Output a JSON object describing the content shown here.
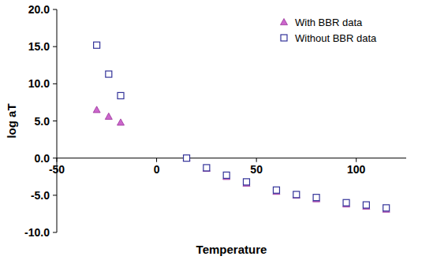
{
  "chart_data": {
    "type": "scatter",
    "x_label": "Temperature",
    "y_label": "log aT",
    "x": [
      -30,
      -24,
      -18,
      15,
      25,
      35,
      45,
      60,
      70,
      80,
      95,
      105,
      115
    ],
    "series": [
      {
        "name": "With BBR data",
        "color": "#cc66cc",
        "marker": "triangle",
        "values": [
          6.5,
          5.6,
          4.8,
          0,
          -1.4,
          -2.5,
          -3.4,
          -4.5,
          -5.0,
          -5.5,
          -6.2,
          -6.5,
          -6.9
        ]
      },
      {
        "name": "Without BBR data",
        "color": "#333399",
        "marker": "square",
        "values": [
          15.2,
          11.3,
          8.4,
          0,
          -1.3,
          -2.3,
          -3.2,
          -4.3,
          -4.9,
          -5.3,
          -6.0,
          -6.3,
          -6.7
        ]
      }
    ],
    "xlim": [
      -50,
      125
    ],
    "xticks": [
      -50,
      0,
      50,
      100
    ],
    "ylim": [
      -10,
      20
    ],
    "yticks": [
      {
        "value": -10,
        "label": "-10.0"
      },
      {
        "value": -5,
        "label": "-5.0"
      },
      {
        "value": 0,
        "label": "0.0"
      },
      {
        "value": 5,
        "label": "5.0"
      },
      {
        "value": 10,
        "label": "10.0"
      },
      {
        "value": 15,
        "label": "15.0"
      },
      {
        "value": 20,
        "label": "20.0"
      }
    ],
    "grid": false,
    "legend": "top-right"
  }
}
